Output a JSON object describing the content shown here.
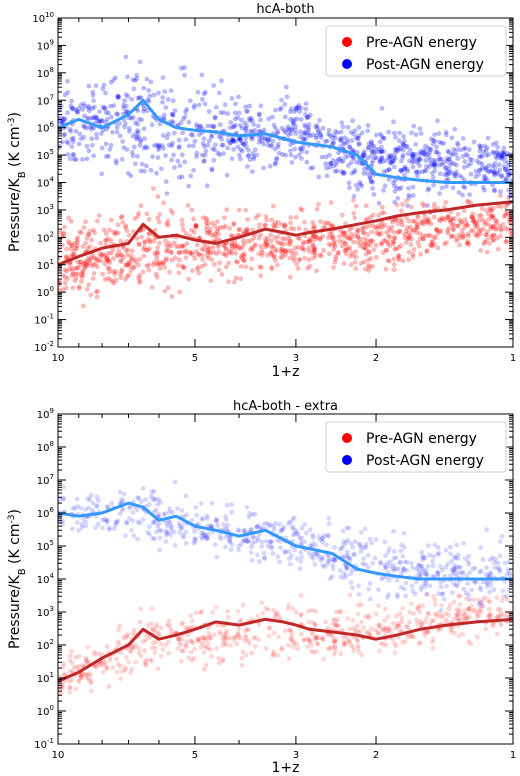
{
  "chart_data": [
    {
      "type": "scatter",
      "title": "hcA-both",
      "xlabel": "1+z",
      "ylabel": "Pressure/K_B (K cm^-3)",
      "ylabel_main": "Pressure/K",
      "ylabel_sub": "B",
      "ylabel_unit": "  (K cm",
      "ylabel_exp": "-3",
      "ylabel_close": ")",
      "x_scale": "log",
      "x_reversed": true,
      "xlim": [
        10,
        1
      ],
      "x_ticks": [
        {
          "v": 10,
          "label": "10"
        },
        {
          "v": 5,
          "label": "5"
        },
        {
          "v": 3,
          "label": "3"
        },
        {
          "v": 2,
          "label": "2"
        },
        {
          "v": 1,
          "label": "1"
        }
      ],
      "y_scale": "log",
      "ylim_exp": [
        -2,
        10
      ],
      "legend_position": "top-right",
      "series": [
        {
          "name": "Pre-AGN energy",
          "point_color": "#ff0000",
          "median_color": "#c02828",
          "median": {
            "x": [
              10,
              9,
              8,
              7,
              6.5,
              6,
              5.5,
              5,
              4.5,
              4,
              3.5,
              3.2,
              3,
              2.8,
              2.5,
              2.2,
              2,
              1.8,
              1.6,
              1.4,
              1.2,
              1
            ],
            "y": [
              10,
              20,
              40,
              60,
              300,
              100,
              120,
              80,
              60,
              100,
              200,
              150,
              120,
              150,
              200,
              300,
              400,
              600,
              800,
              1000,
              1500,
              2000
            ]
          },
          "spread": {
            "x": [
              10,
              8,
              6,
              5,
              4,
              3,
              2.5,
              2,
              1.5,
              1
            ],
            "lo": [
              0.1,
              0.3,
              0.3,
              0.5,
              1,
              2,
              2,
              2,
              10,
              20
            ],
            "hi": [
              1000,
              3000,
              20000,
              5000,
              3000,
              2000,
              3000,
              3000,
              4000,
              5000
            ]
          }
        },
        {
          "name": "Post-AGN energy",
          "point_color": "#0000ff",
          "median_color": "#3399ff",
          "median": {
            "x": [
              10,
              9,
              8,
              7,
              6.5,
              6,
              5.5,
              5,
              4.5,
              4,
              3.5,
              3,
              2.5,
              2.2,
              2,
              1.8,
              1.6,
              1.4,
              1.2,
              1
            ],
            "y": [
              1000000,
              2000000,
              1000000,
              3000000,
              10000000,
              2000000,
              1000000,
              800000,
              700000,
              500000,
              600000,
              300000,
              200000,
              100000,
              20000,
              15000,
              12000,
              10000,
              10000,
              10000
            ]
          },
          "spread": {
            "x": [
              10,
              8,
              6.5,
              6,
              5,
              4,
              3,
              2.5,
              2,
              1.5,
              1
            ],
            "lo": [
              10000,
              10000,
              3000,
              1000,
              3000,
              10000,
              10000,
              5000,
              1000,
              1000,
              1000
            ],
            "hi": [
              100000000,
              300000000,
              2000000000,
              500000000,
              100000000,
              50000000,
              30000000,
              10000000,
              5000000,
              3000000,
              1000000
            ]
          }
        }
      ]
    },
    {
      "type": "scatter",
      "title": "hcA-both - extra",
      "xlabel": "1+z",
      "ylabel": "Pressure/K_B (K cm^-3)",
      "ylabel_main": "Pressure/K",
      "ylabel_sub": "B",
      "ylabel_unit": "  (K cm",
      "ylabel_exp": "-3",
      "ylabel_close": ")",
      "x_scale": "log",
      "x_reversed": true,
      "xlim": [
        10,
        1
      ],
      "x_ticks": [
        {
          "v": 10,
          "label": "10"
        },
        {
          "v": 5,
          "label": "5"
        },
        {
          "v": 3,
          "label": "3"
        },
        {
          "v": 2,
          "label": "2"
        },
        {
          "v": 1,
          "label": "1"
        }
      ],
      "y_scale": "log",
      "ylim_exp": [
        -1,
        9
      ],
      "legend_position": "top-right",
      "series": [
        {
          "name": "Pre-AGN energy",
          "point_color": "#ff0000",
          "median_color": "#c02828",
          "median": {
            "x": [
              10,
              9,
              8,
              7,
              6.5,
              6,
              5.5,
              5,
              4.5,
              4,
              3.5,
              3.2,
              3,
              2.8,
              2.5,
              2.2,
              2,
              1.8,
              1.6,
              1.4,
              1.2,
              1
            ],
            "y": [
              8,
              15,
              40,
              100,
              300,
              150,
              200,
              300,
              500,
              400,
              600,
              500,
              400,
              300,
              250,
              200,
              150,
              200,
              300,
              400,
              500,
              600
            ]
          },
          "spread": {
            "x": [
              10,
              8,
              6,
              5,
              4,
              3,
              2.5,
              2,
              1.5,
              1
            ],
            "lo": [
              1,
              3,
              10,
              10,
              20,
              20,
              20,
              20,
              50,
              100
            ],
            "hi": [
              100,
              300,
              3000,
              2000,
              3000,
              5000,
              3000,
              3000,
              5000,
              10000
            ]
          }
        },
        {
          "name": "Post-AGN energy",
          "point_color": "#0000ff",
          "median_color": "#3399ff",
          "median": {
            "x": [
              10,
              9,
              8,
              7,
              6.5,
              6,
              5.5,
              5,
              4.5,
              4,
              3.5,
              3,
              2.5,
              2.2,
              2,
              1.8,
              1.6,
              1.4,
              1.2,
              1
            ],
            "y": [
              1000000,
              800000,
              1000000,
              2000000,
              1500000,
              600000,
              800000,
              400000,
              300000,
              200000,
              300000,
              100000,
              60000,
              20000,
              15000,
              12000,
              10000,
              10000,
              10000,
              10000
            ]
          },
          "spread": {
            "x": [
              10,
              8,
              6.5,
              6,
              5,
              4,
              3,
              2.5,
              2,
              1.5,
              1
            ],
            "lo": [
              100000,
              100000,
              50000,
              30000,
              30000,
              20000,
              10000,
              5000,
              1000,
              1000,
              1000
            ],
            "hi": [
              10000000,
              10000000,
              20000000,
              10000000,
              5000000,
              3000000,
              2000000,
              1000000,
              500000,
              300000,
              300000
            ]
          }
        }
      ]
    }
  ]
}
